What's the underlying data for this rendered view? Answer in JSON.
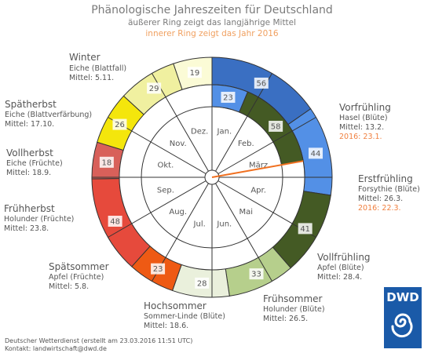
{
  "chart_data": {
    "type": "pie",
    "title": "Phänologische Jahreszeiten für Deutschland",
    "subtitle_outer": "äußerer Ring zeigt das langjährige Mittel",
    "subtitle_inner": "innerer Ring zeigt das Jahr 2016",
    "months": [
      "Jan.",
      "Feb.",
      "März",
      "Apr.",
      "Mai",
      "Jun.",
      "Jul.",
      "Aug.",
      "Sep.",
      "Okt.",
      "Nov.",
      "Dez."
    ],
    "outer_ring": [
      {
        "season": "Winter",
        "indicator": "Eiche (Blattfall)",
        "mean": "Mittel: 5.11.",
        "days": 56,
        "color": "#3a6fc2"
      },
      {
        "season": "Winter",
        "indicator": "",
        "mean": "",
        "days": 44,
        "color": "#5390e6"
      },
      {
        "season": "Vorfrühling",
        "indicator": "Hasel (Blüte)",
        "mean": "Mittel: 13.2.",
        "year_2016": "2016: 23.1.",
        "days": 41,
        "color": "#445a24"
      },
      {
        "season": "Erstfrühling",
        "indicator": "Forsythie (Blüte)",
        "mean": "Mittel: 26.3.",
        "year_2016": "2016: 22.3.",
        "days": 33,
        "color": "#b6cf8c"
      },
      {
        "season": "Vollfrühling",
        "indicator": "Apfel (Blüte)",
        "mean": "Mittel: 28.4.",
        "days": 28,
        "color": "#eaf0dc"
      },
      {
        "season": "Frühsommer",
        "indicator": "Holunder (Blüte)",
        "mean": "Mittel: 26.5.",
        "days": 23,
        "color": "#ee5a14"
      },
      {
        "season": "Hochsommer",
        "indicator": "Sommer-Linde (Blüte)",
        "mean": "Mittel: 18.6.",
        "days": 48,
        "color": "#e64a3c"
      },
      {
        "season": "Spätsommer",
        "indicator": "Apfel (Früchte)",
        "mean": "Mittel: 5.8.",
        "days": 18,
        "color": "#d8605a"
      },
      {
        "season": "Frühherbst",
        "indicator": "Holunder (Früchte)",
        "mean": "Mittel: 23.8.",
        "days": 26,
        "color": "#f4e60c"
      },
      {
        "season": "Vollherbst",
        "indicator": "Eiche (Früchte)",
        "mean": "Mittel: 18.9.",
        "days": 29,
        "color": "#f0f0a0"
      },
      {
        "season": "Spätherbst",
        "indicator": "Eiche (Blattverfärbung)",
        "mean": "Mittel: 17.10.",
        "days": 19,
        "color": "#fbfbd6"
      }
    ],
    "inner_ring_2016": [
      {
        "season": "Winter",
        "days": 23,
        "color": "#5390e6"
      },
      {
        "season": "Vorfrühling",
        "days": 58,
        "color": "#445a24"
      }
    ]
  },
  "footer": {
    "line1": "Deutscher Wetterdienst (erstellt am 23.03.2016 11:51 UTC)",
    "line2": "Kontakt: landwirtschaft@dwd.de"
  },
  "logo": {
    "text": "DWD",
    "color": "#1a5aa8"
  },
  "colors": {
    "today_marker": "#f07020"
  }
}
